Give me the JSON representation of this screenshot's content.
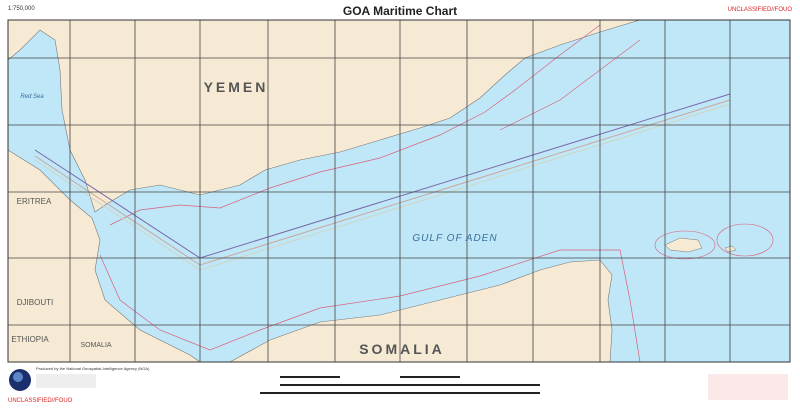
{
  "header": {
    "scale": "1:750,000",
    "title": "GOA Maritime Chart",
    "classification": "UNCLASSIFIED//FOUO"
  },
  "labels": {
    "yemen": "YEMEN",
    "red_sea": "Red Sea",
    "eritrea": "ERITREA",
    "djibouti": "DJIBOUTI",
    "ethiopia": "ETHIOPIA",
    "somalia_small": "SOMALIA",
    "somalia": "SOMALIA",
    "gulf": "GULF OF ADEN"
  },
  "footer": {
    "producer": "Produced by the National Geospatial-Intelligence Agency (NGA)",
    "classification": "UNCLASSIFIED//FOUO"
  }
}
